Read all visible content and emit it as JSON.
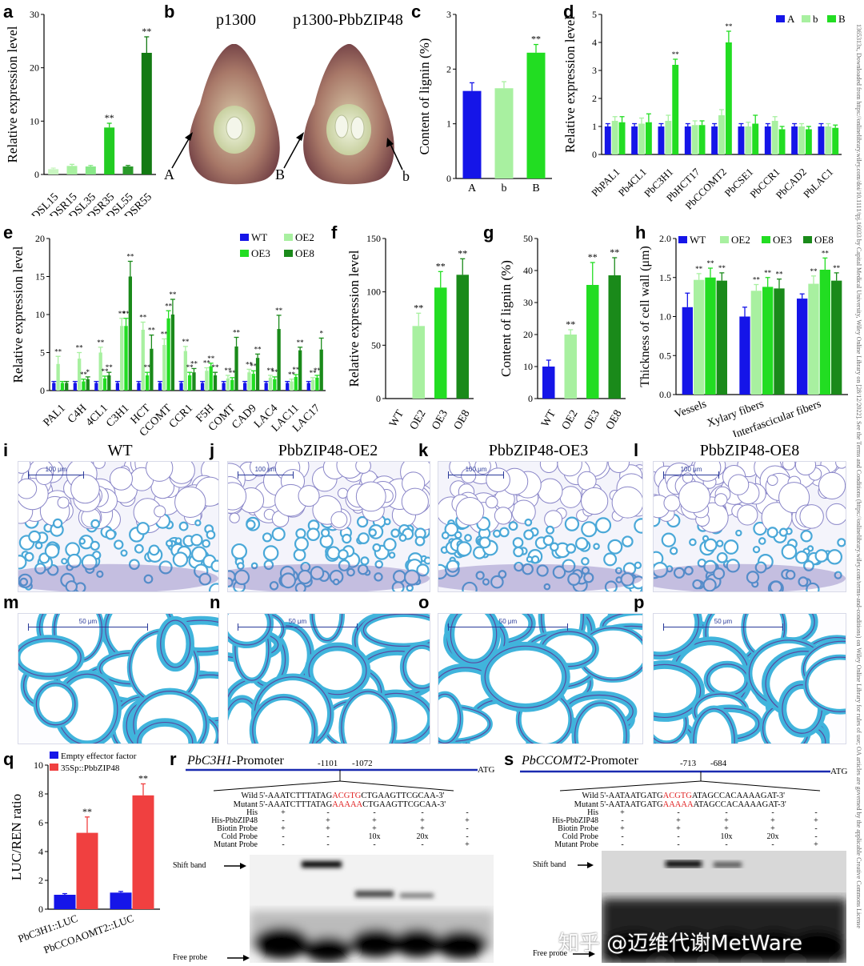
{
  "panel_letters": {
    "a": "a",
    "b": "b",
    "c": "c",
    "d": "d",
    "e": "e",
    "f": "f",
    "g": "g",
    "h": "h",
    "i": "i",
    "j": "j",
    "k": "k",
    "l": "l",
    "m": "m",
    "n": "n",
    "o": "o",
    "p": "p",
    "q": "q",
    "r": "r",
    "s": "s"
  },
  "colors": {
    "blue": "#1515e8",
    "light_green": "#a8f0a0",
    "green": "#22dd22",
    "dark_green": "#1a8a1a",
    "darker_green": "#137a13",
    "red": "#f04040",
    "stain": "#3fb0d8"
  },
  "panel_b": {
    "left_title": "p1300",
    "right_title": "p1300-PbbZIP48",
    "arrow_A": "A",
    "arrow_B": "B",
    "arrow_b": "b"
  },
  "micrographs": {
    "i_title": "WT",
    "j_title": "PbbZIP48-OE2",
    "k_title": "PbbZIP48-OE3",
    "l_title": "PbbZIP48-OE8",
    "scale_top": "100 μm",
    "scale_bottom": "50 μm"
  },
  "panel_r": {
    "title_italic": "PbC3H1",
    "title_rest": "-Promoter",
    "pos1": "-1101",
    "pos2": "-1072",
    "atg": "ATG",
    "wild_label": "Wild",
    "wild_pre": "5'-AAATCTTTATAG",
    "wild_core": "ACGTG",
    "wild_post": "CTGAAGTTCGCAA-3'",
    "mutant_label": "Mutant",
    "mutant_pre": "5'-AAATCTTTATAG",
    "mutant_core": "AAAAA",
    "mutant_post": "CTGAAGTTCGCAA-3'",
    "rows": [
      {
        "label": "His",
        "vals": [
          "+",
          "-",
          "-",
          "-",
          "-"
        ]
      },
      {
        "label": "His-PbbZIP48",
        "vals": [
          "-",
          "+",
          "+",
          "+",
          "+"
        ]
      },
      {
        "label": "Biotin Probe",
        "vals": [
          "+",
          "+",
          "+",
          "+",
          "-"
        ]
      },
      {
        "label": "Cold Probe",
        "vals": [
          "-",
          "-",
          "10x",
          "20x",
          "-"
        ]
      },
      {
        "label": "Mutant Probe",
        "vals": [
          "-",
          "-",
          "-",
          "-",
          "+"
        ]
      }
    ],
    "shift_band": "Shift band",
    "free_probe": "Free probe"
  },
  "panel_s": {
    "title_italic": "PbCCOMT2",
    "title_rest": "-Promoter",
    "pos1": "-713",
    "pos2": "-684",
    "atg": "ATG",
    "wild_label": "Wild",
    "wild_pre": "5'-AATAATGATG",
    "wild_core": "ACGTG",
    "wild_post": "ATAGCCACAAAAGAT-3'",
    "mutant_label": "Mutant",
    "mutant_pre": "5'-AATAATGATG",
    "mutant_core": "AAAAA",
    "mutant_post": "ATAGCCACAAAAGAT-3'",
    "rows": [
      {
        "label": "His",
        "vals": [
          "+",
          "-",
          "-",
          "-",
          "-"
        ]
      },
      {
        "label": "His-PbbZIP48",
        "vals": [
          "-",
          "+",
          "+",
          "+",
          "+"
        ]
      },
      {
        "label": "Biotin Probe",
        "vals": [
          "+",
          "+",
          "+",
          "+",
          "-"
        ]
      },
      {
        "label": "Cold Probe",
        "vals": [
          "-",
          "-",
          "10x",
          "20x",
          "-"
        ]
      },
      {
        "label": "Mutant Probe",
        "vals": [
          "-",
          "-",
          "-",
          "-",
          "+"
        ]
      }
    ],
    "shift_band": "Shift band",
    "free_probe": "Free probe"
  },
  "watermark": "知乎 @迈维代谢MetWare",
  "side_note": "1365313x, Downloaded from https://onlinelibrary.wiley.com/doi/10.1111/tpj.16033 by Capital Medical University, Wiley Online Library on [28/12/2022]. See the Terms and Conditions (https://onlinelibrary.wiley.com/terms-and-conditions) on Wiley Online Library for rules of use; OA articles are governed by the applicable Creative Commons License",
  "chart_data": [
    {
      "id": "a",
      "type": "bar",
      "categories": [
        "DSL15",
        "DSR15",
        "DSL35",
        "DSR35",
        "DSL55",
        "DSR55"
      ],
      "values": [
        1.0,
        1.6,
        1.5,
        8.8,
        1.5,
        22.8
      ],
      "errors": [
        0.2,
        0.3,
        0.2,
        0.8,
        0.2,
        3.0
      ],
      "sig": [
        "",
        "",
        "",
        "**",
        "",
        "**"
      ],
      "colors": [
        "#c8f5c0",
        "#a8f0a0",
        "#88e888",
        "#22cc22",
        "#2a9a2a",
        "#137a13"
      ],
      "ylabel": "Relative expression level",
      "ylim": [
        0,
        30
      ],
      "yticks": [
        0,
        10,
        20,
        30
      ]
    },
    {
      "id": "c",
      "type": "bar",
      "categories": [
        "A",
        "b",
        "B"
      ],
      "values": [
        1.6,
        1.65,
        2.3
      ],
      "errors": [
        0.15,
        0.12,
        0.15
      ],
      "sig": [
        "",
        "",
        "**"
      ],
      "colors": [
        "#1515e8",
        "#a8f0a0",
        "#22dd22"
      ],
      "ylabel": "Content of lignin (%)",
      "ylim": [
        0,
        3
      ],
      "yticks": [
        0,
        1,
        2,
        3
      ]
    },
    {
      "id": "d",
      "type": "bar",
      "categories": [
        "PbPAL1",
        "Pb4CL1",
        "PbC3H1",
        "PbHCT17",
        "PbCCOMT2",
        "PbCSE1",
        "PbCCR1",
        "PbCAD2",
        "PbLAC1"
      ],
      "series": [
        {
          "name": "A",
          "color": "#1515e8",
          "values": [
            1,
            1,
            1,
            1,
            1,
            1,
            1,
            1,
            1
          ],
          "errors": [
            0.1,
            0.1,
            0.1,
            0.1,
            0.1,
            0.1,
            0.1,
            0.1,
            0.1
          ],
          "sig": [
            "",
            "",
            "",
            "",
            "",
            "",
            "",
            "",
            ""
          ]
        },
        {
          "name": "b",
          "color": "#a8f0a0",
          "values": [
            1.2,
            1.1,
            1.2,
            1.05,
            1.4,
            1.0,
            1.2,
            1.0,
            1.0
          ],
          "errors": [
            0.15,
            0.2,
            0.2,
            0.15,
            0.2,
            0.15,
            0.15,
            0.1,
            0.1
          ],
          "sig": [
            "",
            "",
            "",
            "",
            "",
            "",
            "",
            "",
            ""
          ]
        },
        {
          "name": "B",
          "color": "#22dd22",
          "values": [
            1.15,
            1.15,
            3.2,
            1.05,
            4.0,
            1.1,
            0.9,
            0.9,
            0.95
          ],
          "errors": [
            0.2,
            0.3,
            0.2,
            0.15,
            0.4,
            0.3,
            0.1,
            0.1,
            0.1
          ],
          "sig": [
            "",
            "",
            "**",
            "",
            "**",
            "",
            "",
            "",
            ""
          ]
        }
      ],
      "ylabel": "Relative expression level",
      "ylim": [
        0,
        5
      ],
      "yticks": [
        0,
        1,
        2,
        3,
        4,
        5
      ],
      "legend": "top-right"
    },
    {
      "id": "e",
      "type": "bar",
      "categories": [
        "PAL1",
        "C4H",
        "4CL1",
        "C3H1",
        "HCT",
        "CCOMT",
        "CCR1",
        "F5H",
        "COMT",
        "CAD9",
        "LAC4",
        "LAC11",
        "LAC17"
      ],
      "series": [
        {
          "name": "WT",
          "color": "#1515e8",
          "values": [
            1,
            1,
            1,
            1,
            1,
            1,
            1,
            1,
            1,
            1,
            1,
            1,
            1
          ],
          "errors": [
            0.2,
            0.2,
            0.2,
            0.2,
            0.2,
            0.2,
            0.2,
            0.2,
            0.2,
            0.2,
            0.2,
            0.2,
            0.2
          ],
          "sig": [
            "",
            "",
            "",
            "",
            "",
            "",
            "",
            "",
            "",
            "",
            "",
            "",
            ""
          ]
        },
        {
          "name": "OE2",
          "color": "#a8f0a0",
          "values": [
            3.5,
            4.2,
            5.0,
            8.5,
            8.0,
            6.0,
            5.2,
            2.6,
            1.6,
            2.4,
            1.7,
            1.2,
            1.4
          ],
          "errors": [
            1.0,
            0.8,
            0.7,
            1.0,
            1.0,
            0.8,
            0.6,
            0.4,
            0.4,
            0.4,
            0.3,
            0.3,
            0.3
          ],
          "sig": [
            "**",
            "**",
            "**",
            "**",
            "**",
            "**",
            "**",
            "**",
            "**",
            "**",
            "**",
            "**",
            "**"
          ]
        },
        {
          "name": "OE3",
          "color": "#22dd22",
          "values": [
            1.0,
            1.2,
            1.6,
            8.5,
            2.0,
            9.5,
            2.0,
            3.2,
            1.4,
            2.2,
            1.5,
            1.8,
            1.7
          ],
          "errors": [
            0.2,
            0.3,
            0.3,
            1.0,
            0.4,
            1.0,
            0.4,
            0.4,
            0.3,
            0.4,
            0.3,
            0.3,
            0.3
          ],
          "sig": [
            "",
            "**",
            "**",
            "**",
            "**",
            "**",
            "**",
            "**",
            "**",
            "**",
            "**",
            "**",
            "**"
          ]
        },
        {
          "name": "OE8",
          "color": "#1a8a1a",
          "values": [
            1.0,
            1.5,
            2.0,
            15.0,
            5.5,
            10.0,
            2.4,
            2.0,
            5.8,
            4.3,
            8.1,
            5.3,
            5.4
          ],
          "errors": [
            0.2,
            0.3,
            0.4,
            2.0,
            1.8,
            2.0,
            0.5,
            0.4,
            1.2,
            0.5,
            1.8,
            0.4,
            1.5
          ],
          "sig": [
            "",
            "*",
            "**",
            "**",
            "**",
            "**",
            "**",
            "**",
            "**",
            "**",
            "**",
            "**",
            "*"
          ]
        }
      ],
      "ylabel": "Relative expression level",
      "ylim": [
        0,
        20
      ],
      "yticks": [
        0,
        5,
        10,
        15,
        20
      ],
      "legend": "top-right"
    },
    {
      "id": "f",
      "type": "bar",
      "categories": [
        "WT",
        "OE2",
        "OE3",
        "OE8"
      ],
      "values": [
        0,
        68,
        104,
        116
      ],
      "errors": [
        0,
        12,
        15,
        15
      ],
      "sig": [
        "",
        "**",
        "**",
        "**"
      ],
      "colors": [
        "#1515e8",
        "#a8f0a0",
        "#22dd22",
        "#1a8a1a"
      ],
      "ylabel": "Relative expression level",
      "ylim": [
        0,
        150
      ],
      "yticks": [
        0,
        50,
        100,
        150
      ]
    },
    {
      "id": "g",
      "type": "bar",
      "categories": [
        "WT",
        "OE2",
        "OE3",
        "OE8"
      ],
      "values": [
        10,
        20,
        35.5,
        38.5
      ],
      "errors": [
        2,
        1.5,
        7,
        5.5
      ],
      "sig": [
        "",
        "**",
        "**",
        "**"
      ],
      "colors": [
        "#1515e8",
        "#a8f0a0",
        "#22dd22",
        "#1a8a1a"
      ],
      "ylabel": "Content of lignin (%)",
      "ylim": [
        0,
        50
      ],
      "yticks": [
        0,
        10,
        20,
        30,
        40,
        50
      ]
    },
    {
      "id": "h",
      "type": "bar",
      "categories": [
        "Vessels",
        "Xylary fibers",
        "Interfascicular fibers"
      ],
      "series": [
        {
          "name": "WT",
          "color": "#1515e8",
          "values": [
            1.12,
            1.0,
            1.23
          ],
          "errors": [
            0.18,
            0.12,
            0.06
          ],
          "sig": [
            "",
            "",
            ""
          ]
        },
        {
          "name": "OE2",
          "color": "#a8f0a0",
          "values": [
            1.47,
            1.33,
            1.42
          ],
          "errors": [
            0.08,
            0.08,
            0.1
          ],
          "sig": [
            "**",
            "**",
            "**"
          ]
        },
        {
          "name": "OE3",
          "color": "#22dd22",
          "values": [
            1.5,
            1.38,
            1.6
          ],
          "errors": [
            0.12,
            0.12,
            0.15
          ],
          "sig": [
            "**",
            "**",
            "**"
          ]
        },
        {
          "name": "OE8",
          "color": "#1a8a1a",
          "values": [
            1.46,
            1.36,
            1.46
          ],
          "errors": [
            0.1,
            0.12,
            0.1
          ],
          "sig": [
            "**",
            "**",
            "**"
          ]
        }
      ],
      "ylabel": "Thickness of  cell wall (μm)",
      "ylim": [
        0,
        2.0
      ],
      "yticks": [
        0.0,
        0.5,
        1.0,
        1.5,
        2.0
      ],
      "legend": "top"
    },
    {
      "id": "q",
      "type": "bar",
      "categories": [
        "PbC3H1::LUC",
        "PbCCOAOMT2::LUC"
      ],
      "series": [
        {
          "name": "Empty effector factor",
          "color": "#1515e8",
          "values": [
            1.0,
            1.15
          ],
          "errors": [
            0.08,
            0.08
          ],
          "sig": [
            "",
            ""
          ]
        },
        {
          "name": "35Sp::PbbZIP48",
          "color": "#f04040",
          "values": [
            5.3,
            7.9
          ],
          "errors": [
            1.1,
            0.8
          ],
          "sig": [
            "**",
            "**"
          ]
        }
      ],
      "ylabel": "LUC/REN ratio",
      "ylim": [
        0,
        10
      ],
      "yticks": [
        0,
        2,
        4,
        6,
        8,
        10
      ],
      "legend": "top-left"
    }
  ]
}
